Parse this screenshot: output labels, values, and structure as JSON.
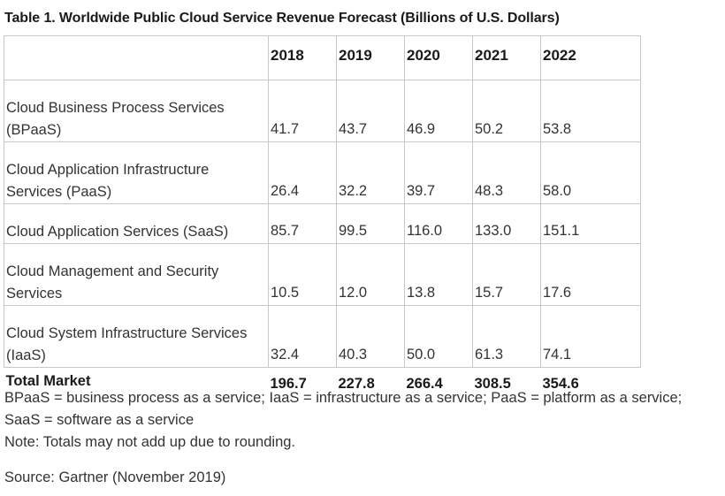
{
  "title": "Table 1. Worldwide Public Cloud Service Revenue Forecast (Billions of U.S. Dollars)",
  "table": {
    "header": [
      "",
      "2018",
      "2019",
      "2020",
      "2021",
      "2022"
    ],
    "rows": [
      {
        "label": "Cloud Business Process Services (BPaaS)",
        "values": [
          "41.7",
          "43.7",
          "46.9",
          "50.2",
          "53.8"
        ]
      },
      {
        "label": "Cloud Application Infrastructure Services (PaaS)",
        "values": [
          "26.4",
          "32.2",
          "39.7",
          "48.3",
          "58.0"
        ]
      },
      {
        "label": "Cloud Application Services (SaaS)",
        "values": [
          "85.7",
          "99.5",
          "116.0",
          "133.0",
          "151.1"
        ]
      },
      {
        "label": "Cloud Management and Security Services",
        "values": [
          "10.5",
          "12.0",
          "13.8",
          "15.7",
          "17.6"
        ]
      },
      {
        "label": "Cloud System Infrastructure Services (IaaS)",
        "values": [
          "32.4",
          "40.3",
          "50.0",
          "61.3",
          "74.1"
        ]
      }
    ],
    "total": {
      "label": "Total Market",
      "values": [
        "196.7",
        "227.8",
        "266.4",
        "308.5",
        "354.6"
      ]
    }
  },
  "footnotes": {
    "abbreviations": "BPaaS = business process as a service; IaaS = infrastructure as a service; PaaS = platform as a service; SaaS = software as a service",
    "note": "Note: Totals may not add up due to rounding.",
    "source": "Source: Gartner (November 2019)"
  }
}
